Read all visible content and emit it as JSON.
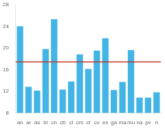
{
  "chart_data": {
    "type": "bar",
    "categories": [
      "an",
      "ar",
      "as",
      "bl",
      "cn",
      "cb",
      "cl",
      "cm",
      "ct",
      "cv",
      "ex",
      "ga",
      "ma",
      "mu",
      "na",
      "pv",
      "ri"
    ],
    "values": [
      24.0,
      12.8,
      12.1,
      19.8,
      25.3,
      12.3,
      13.8,
      18.8,
      16.1,
      19.5,
      21.8,
      12.2,
      13.7,
      19.6,
      10.8,
      10.8,
      11.8
    ],
    "color": "#42b4e6",
    "reference_line": {
      "value": 17.4,
      "color": "#c0392b"
    },
    "ylim": [
      8,
      28
    ],
    "yticks": [
      8,
      12,
      16,
      20,
      24,
      28
    ],
    "grid": false
  }
}
